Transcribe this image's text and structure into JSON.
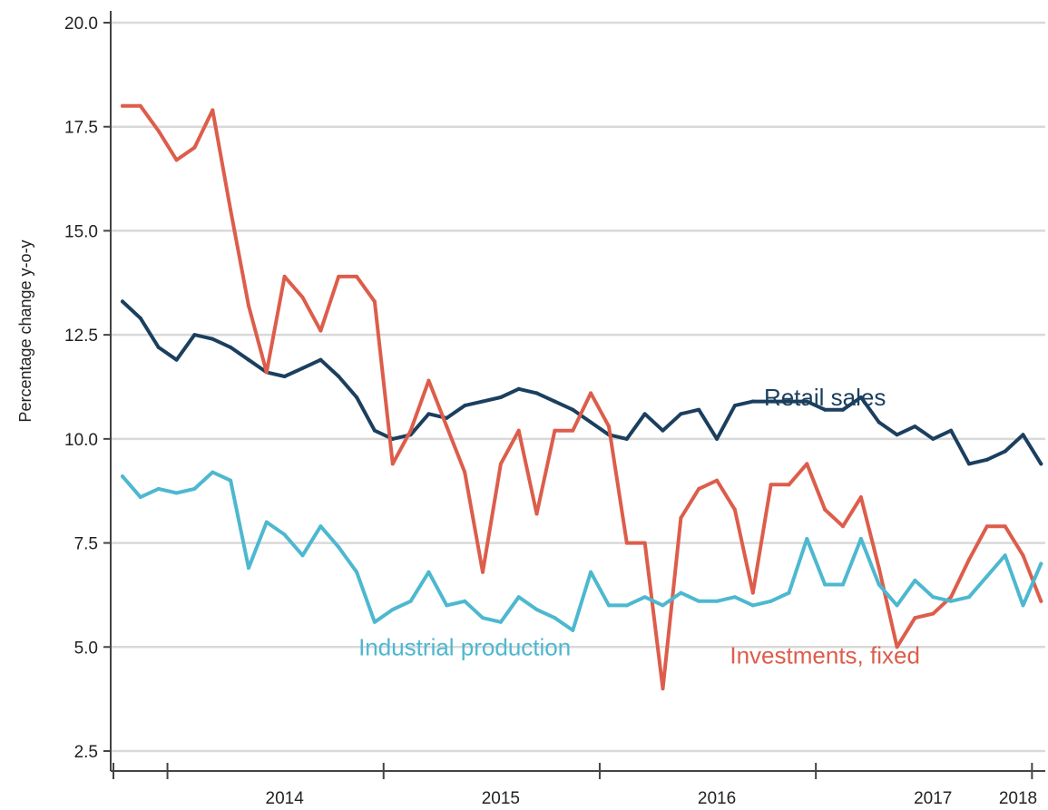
{
  "chart_data": {
    "type": "line",
    "ylabel": "Percentage change y-o-y",
    "ylim": [
      2.5,
      20.0
    ],
    "yticks": [
      "20.0",
      "17.5",
      "15.0",
      "12.5",
      "10.0",
      "7.5",
      "5.0",
      "2.5"
    ],
    "ytick_values": [
      20.0,
      17.5,
      15.0,
      12.5,
      10.0,
      7.5,
      5.0,
      2.5
    ],
    "grid": "horizontal",
    "x_start": "2013-10",
    "x_end": "2018-04",
    "x_year_labels": [
      {
        "label": "2014",
        "at": "2014-07"
      },
      {
        "label": "2015",
        "at": "2015-07"
      },
      {
        "label": "2016",
        "at": "2016-07"
      },
      {
        "label": "2017",
        "at": "2017-07"
      },
      {
        "label": "2018",
        "at": "2018-04"
      }
    ],
    "x_year_boundaries": [
      "2014-01",
      "2015-01",
      "2016-01",
      "2017-01",
      "2018-01"
    ],
    "series": [
      {
        "name": "Retail sales",
        "color": "#1b3f5e",
        "label_at": [
          "2017-01",
          11.0
        ],
        "points": [
          [
            "2013-10",
            13.3
          ],
          [
            "2013-11",
            12.9
          ],
          [
            "2013-12",
            12.2
          ],
          [
            "2014-01",
            11.9
          ],
          [
            "2014-02",
            12.5
          ],
          [
            "2014-03",
            12.4
          ],
          [
            "2014-04",
            12.2
          ],
          [
            "2014-05",
            11.9
          ],
          [
            "2014-06",
            11.6
          ],
          [
            "2014-07",
            11.5
          ],
          [
            "2014-08",
            11.7
          ],
          [
            "2014-09",
            11.9
          ],
          [
            "2014-10",
            11.5
          ],
          [
            "2014-11",
            11.0
          ],
          [
            "2014-12",
            10.2
          ],
          [
            "2015-01",
            10.0
          ],
          [
            "2015-02",
            10.1
          ],
          [
            "2015-03",
            10.6
          ],
          [
            "2015-04",
            10.5
          ],
          [
            "2015-05",
            10.8
          ],
          [
            "2015-06",
            10.9
          ],
          [
            "2015-07",
            11.0
          ],
          [
            "2015-08",
            11.2
          ],
          [
            "2015-09",
            11.1
          ],
          [
            "2015-10",
            10.9
          ],
          [
            "2015-11",
            10.7
          ],
          [
            "2015-12",
            10.4
          ],
          [
            "2016-01",
            10.1
          ],
          [
            "2016-02",
            10.0
          ],
          [
            "2016-03",
            10.6
          ],
          [
            "2016-04",
            10.2
          ],
          [
            "2016-05",
            10.6
          ],
          [
            "2016-06",
            10.7
          ],
          [
            "2016-07",
            10.0
          ],
          [
            "2016-08",
            10.8
          ],
          [
            "2016-09",
            10.9
          ],
          [
            "2016-10",
            10.9
          ],
          [
            "2016-11",
            10.9
          ],
          [
            "2016-12",
            10.9
          ],
          [
            "2017-01",
            10.7
          ],
          [
            "2017-02",
            10.7
          ],
          [
            "2017-03",
            11.0
          ],
          [
            "2017-04",
            10.4
          ],
          [
            "2017-05",
            10.1
          ],
          [
            "2017-06",
            10.3
          ],
          [
            "2017-07",
            10.0
          ],
          [
            "2017-08",
            10.2
          ],
          [
            "2017-09",
            9.4
          ],
          [
            "2017-10",
            9.5
          ],
          [
            "2017-11",
            9.7
          ],
          [
            "2017-12",
            10.1
          ],
          [
            "2018-01",
            9.4
          ]
        ]
      },
      {
        "name": "Investments, fixed",
        "color": "#dd5d4b",
        "label_at": [
          "2017-01",
          4.8
        ],
        "points": [
          [
            "2013-10",
            18.0
          ],
          [
            "2013-11",
            18.0
          ],
          [
            "2013-12",
            17.4
          ],
          [
            "2014-01",
            16.7
          ],
          [
            "2014-02",
            17.0
          ],
          [
            "2014-03",
            17.9
          ],
          [
            "2014-04",
            15.5
          ],
          [
            "2014-05",
            13.2
          ],
          [
            "2014-06",
            11.6
          ],
          [
            "2014-07",
            13.9
          ],
          [
            "2014-08",
            13.4
          ],
          [
            "2014-09",
            12.6
          ],
          [
            "2014-10",
            13.9
          ],
          [
            "2014-11",
            13.9
          ],
          [
            "2014-12",
            13.3
          ],
          [
            "2015-01",
            9.4
          ],
          [
            "2015-02",
            10.2
          ],
          [
            "2015-03",
            11.4
          ],
          [
            "2015-04",
            10.3
          ],
          [
            "2015-05",
            9.2
          ],
          [
            "2015-06",
            6.8
          ],
          [
            "2015-07",
            9.4
          ],
          [
            "2015-08",
            10.2
          ],
          [
            "2015-09",
            8.2
          ],
          [
            "2015-10",
            10.2
          ],
          [
            "2015-11",
            10.2
          ],
          [
            "2015-12",
            11.1
          ],
          [
            "2016-01",
            10.3
          ],
          [
            "2016-02",
            7.5
          ],
          [
            "2016-03",
            7.5
          ],
          [
            "2016-04",
            4.0
          ],
          [
            "2016-05",
            8.1
          ],
          [
            "2016-06",
            8.8
          ],
          [
            "2016-07",
            9.0
          ],
          [
            "2016-08",
            8.3
          ],
          [
            "2016-09",
            6.3
          ],
          [
            "2016-10",
            8.9
          ],
          [
            "2016-11",
            8.9
          ],
          [
            "2016-12",
            9.4
          ],
          [
            "2017-01",
            8.3
          ],
          [
            "2017-02",
            7.9
          ],
          [
            "2017-03",
            8.6
          ],
          [
            "2017-04",
            6.9
          ],
          [
            "2017-05",
            5.0
          ],
          [
            "2017-06",
            5.7
          ],
          [
            "2017-07",
            5.8
          ],
          [
            "2017-08",
            6.2
          ],
          [
            "2017-09",
            7.1
          ],
          [
            "2017-10",
            7.9
          ],
          [
            "2017-11",
            7.9
          ],
          [
            "2017-12",
            7.2
          ],
          [
            "2018-01",
            6.1
          ]
        ]
      },
      {
        "name": "Industrial production",
        "color": "#4db8cf",
        "label_at": [
          "2015-05",
          5.0
        ],
        "points": [
          [
            "2013-10",
            9.1
          ],
          [
            "2013-11",
            8.6
          ],
          [
            "2013-12",
            8.8
          ],
          [
            "2014-01",
            8.7
          ],
          [
            "2014-02",
            8.8
          ],
          [
            "2014-03",
            9.2
          ],
          [
            "2014-04",
            9.0
          ],
          [
            "2014-05",
            6.9
          ],
          [
            "2014-06",
            8.0
          ],
          [
            "2014-07",
            7.7
          ],
          [
            "2014-08",
            7.2
          ],
          [
            "2014-09",
            7.9
          ],
          [
            "2014-10",
            7.4
          ],
          [
            "2014-11",
            6.8
          ],
          [
            "2014-12",
            5.6
          ],
          [
            "2015-01",
            5.9
          ],
          [
            "2015-02",
            6.1
          ],
          [
            "2015-03",
            6.8
          ],
          [
            "2015-04",
            6.0
          ],
          [
            "2015-05",
            6.1
          ],
          [
            "2015-06",
            5.7
          ],
          [
            "2015-07",
            5.6
          ],
          [
            "2015-08",
            6.2
          ],
          [
            "2015-09",
            5.9
          ],
          [
            "2015-10",
            5.7
          ],
          [
            "2015-11",
            5.4
          ],
          [
            "2015-12",
            6.8
          ],
          [
            "2016-01",
            6.0
          ],
          [
            "2016-02",
            6.0
          ],
          [
            "2016-03",
            6.2
          ],
          [
            "2016-04",
            6.0
          ],
          [
            "2016-05",
            6.3
          ],
          [
            "2016-06",
            6.1
          ],
          [
            "2016-07",
            6.1
          ],
          [
            "2016-08",
            6.2
          ],
          [
            "2016-09",
            6.0
          ],
          [
            "2016-10",
            6.1
          ],
          [
            "2016-11",
            6.3
          ],
          [
            "2016-12",
            7.6
          ],
          [
            "2017-01",
            6.5
          ],
          [
            "2017-02",
            6.5
          ],
          [
            "2017-03",
            7.6
          ],
          [
            "2017-04",
            6.5
          ],
          [
            "2017-05",
            6.0
          ],
          [
            "2017-06",
            6.6
          ],
          [
            "2017-07",
            6.2
          ],
          [
            "2017-08",
            6.1
          ],
          [
            "2017-09",
            6.2
          ],
          [
            "2017-10",
            6.7
          ],
          [
            "2017-11",
            7.2
          ],
          [
            "2017-12",
            6.0
          ],
          [
            "2018-01",
            7.0
          ]
        ]
      }
    ]
  }
}
